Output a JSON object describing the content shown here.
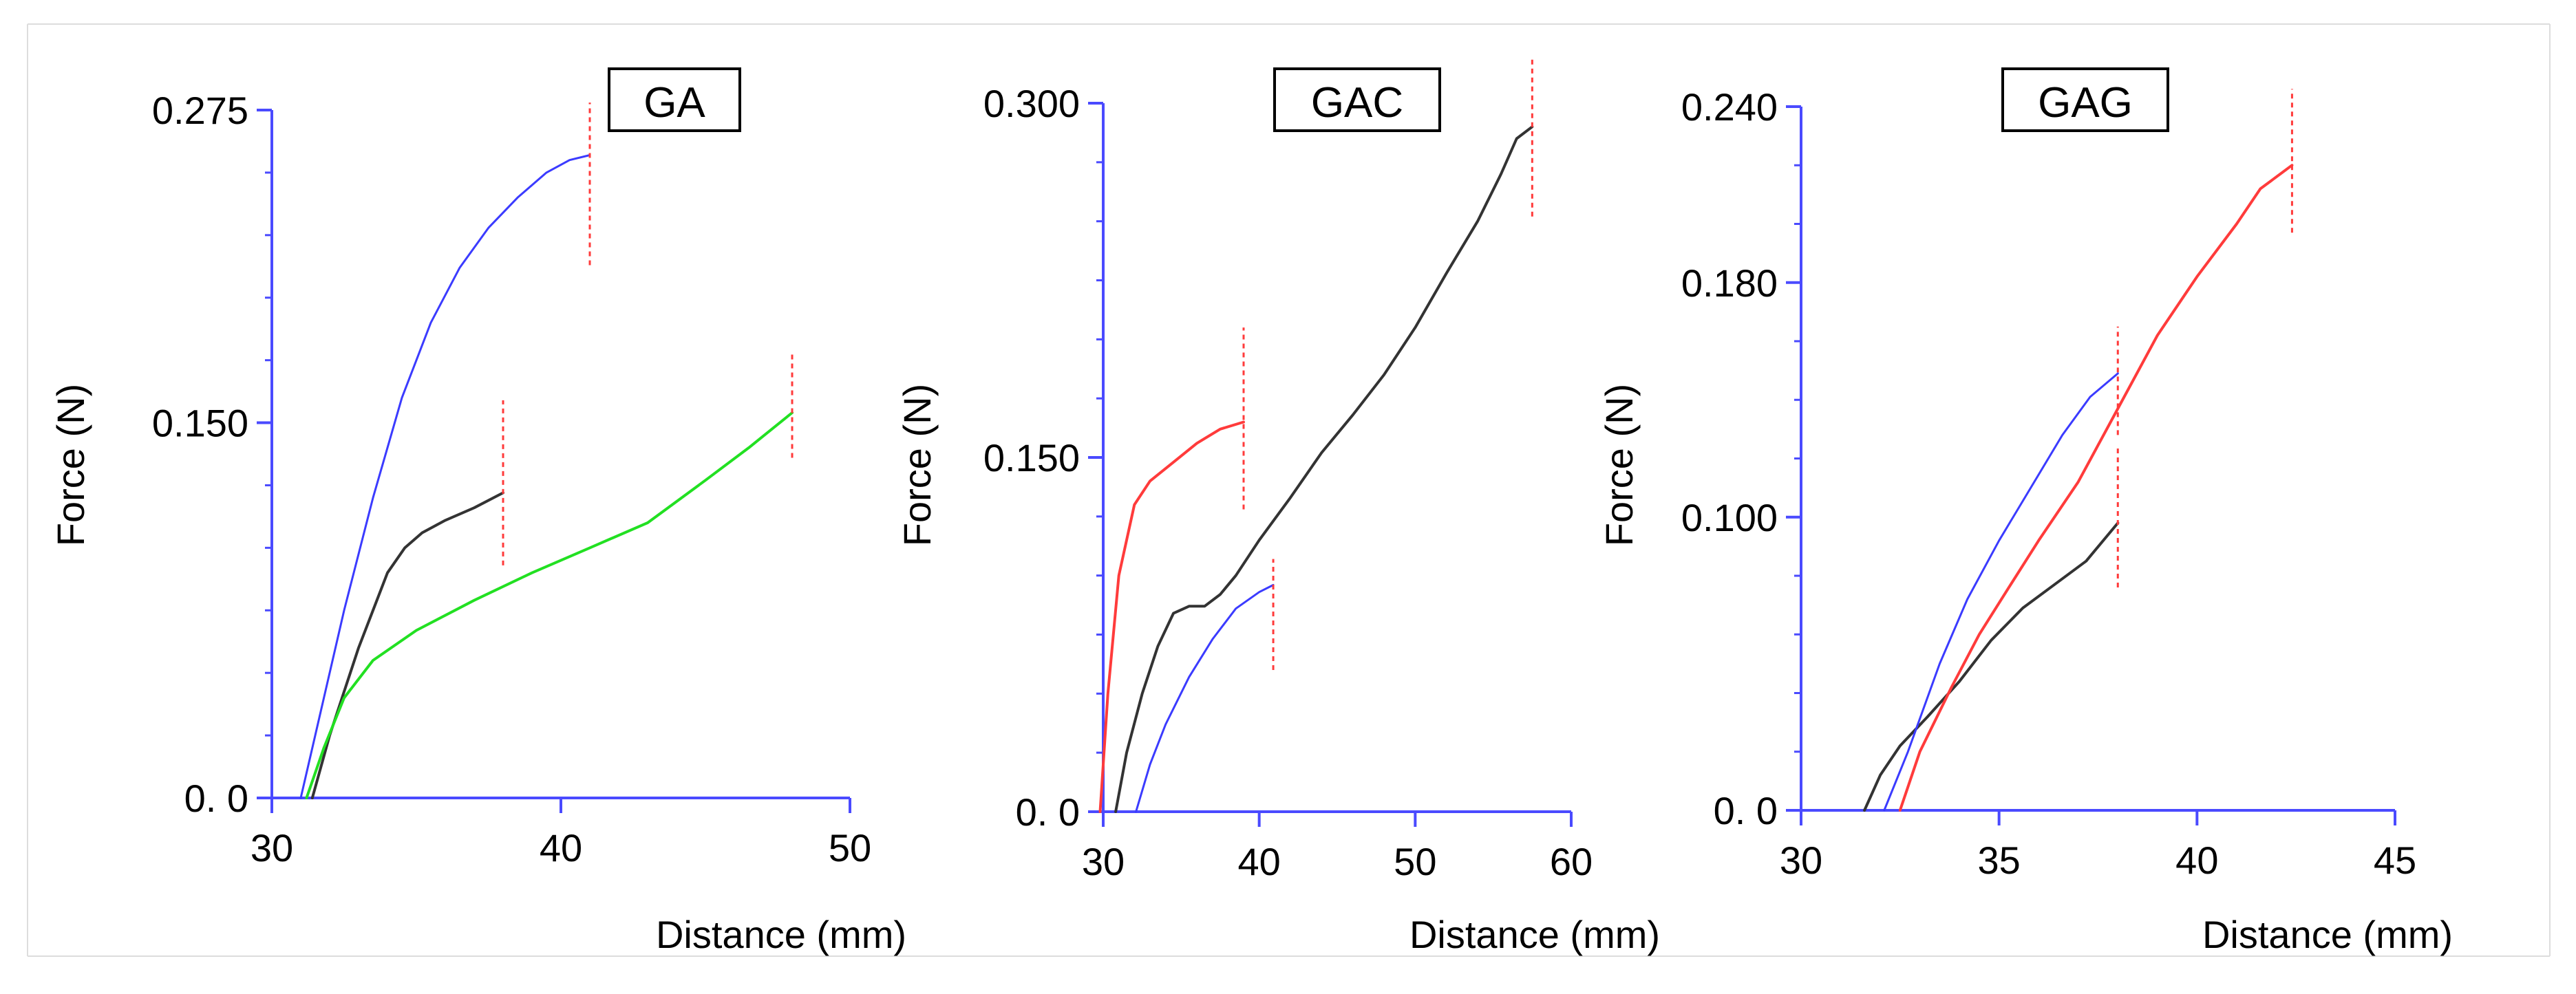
{
  "chart_data": [
    {
      "type": "line",
      "title": "GA",
      "xlabel": "Distance (mm)",
      "ylabel": "Force (N)",
      "xlim": [
        30,
        50
      ],
      "ylim": [
        0,
        0.275
      ],
      "xticks": [
        {
          "v": 30,
          "label": "30"
        },
        {
          "v": 40,
          "label": "40"
        },
        {
          "v": 50,
          "label": "50"
        }
      ],
      "yticks": [
        {
          "v": 0,
          "label": "0. 0"
        },
        {
          "v": 0.15,
          "label": "0.150"
        },
        {
          "v": 0.275,
          "label": "0.275"
        }
      ],
      "yminor": [
        0.025,
        0.05,
        0.075,
        0.1,
        0.125,
        0.175,
        0.2,
        0.225,
        0.25
      ],
      "series": [
        {
          "name": "blue",
          "color": "#3b3bff",
          "width": 3,
          "x": [
            31.0,
            31.5,
            32.5,
            33.5,
            34.5,
            35.5,
            36.5,
            37.5,
            38.5,
            39.5,
            40.3,
            41.0
          ],
          "y": [
            0.0,
            0.025,
            0.075,
            0.12,
            0.16,
            0.19,
            0.212,
            0.228,
            0.24,
            0.25,
            0.255,
            0.257
          ]
        },
        {
          "name": "black",
          "color": "#333333",
          "width": 4,
          "x": [
            31.4,
            32.0,
            33.0,
            34.0,
            34.6,
            35.2,
            36.0,
            37.0,
            38.0
          ],
          "y": [
            0.0,
            0.025,
            0.06,
            0.09,
            0.1,
            0.106,
            0.111,
            0.116,
            0.122
          ]
        },
        {
          "name": "green",
          "color": "#22e022",
          "width": 4,
          "x": [
            31.2,
            31.8,
            32.5,
            33.5,
            35.0,
            37.0,
            39.0,
            41.0,
            43.0,
            45.0,
            46.5,
            48.0
          ],
          "y": [
            0.0,
            0.02,
            0.04,
            0.055,
            0.067,
            0.079,
            0.09,
            0.1,
            0.11,
            0.127,
            0.14,
            0.154
          ]
        }
      ],
      "ends": [
        {
          "x": 41.0,
          "y0": 0.213,
          "y1": 0.278
        },
        {
          "x": 38.0,
          "y0": 0.093,
          "y1": 0.159
        },
        {
          "x": 48.0,
          "y0": 0.136,
          "y1": 0.178
        }
      ]
    },
    {
      "type": "line",
      "title": "GAC",
      "xlabel": "Distance (mm)",
      "ylabel": "Force (N)",
      "xlim": [
        30,
        60
      ],
      "ylim": [
        0,
        0.3
      ],
      "xticks": [
        {
          "v": 30,
          "label": "30"
        },
        {
          "v": 40,
          "label": "40"
        },
        {
          "v": 50,
          "label": "50"
        },
        {
          "v": 60,
          "label": "60"
        }
      ],
      "yticks": [
        {
          "v": 0,
          "label": "0. 0"
        },
        {
          "v": 0.15,
          "label": "0.150"
        },
        {
          "v": 0.3,
          "label": "0.300"
        }
      ],
      "yminor": [
        0.025,
        0.05,
        0.075,
        0.1,
        0.125,
        0.175,
        0.2,
        0.225,
        0.25,
        0.275
      ],
      "series": [
        {
          "name": "red",
          "color": "#ff3b3b",
          "width": 4,
          "x": [
            29.8,
            30.3,
            31.0,
            32.0,
            33.0,
            34.5,
            36.0,
            37.5,
            39.0
          ],
          "y": [
            0.0,
            0.05,
            0.1,
            0.13,
            0.14,
            0.148,
            0.156,
            0.162,
            0.165
          ]
        },
        {
          "name": "black",
          "color": "#333333",
          "width": 4,
          "x": [
            30.8,
            31.5,
            32.5,
            33.5,
            34.5,
            35.5,
            36.5,
            37.5,
            38.5,
            40.0,
            42.0,
            44.0,
            46.0,
            48.0,
            50.0,
            52.0,
            54.0,
            55.5,
            56.5,
            57.5
          ],
          "y": [
            0.0,
            0.025,
            0.05,
            0.07,
            0.084,
            0.087,
            0.087,
            0.092,
            0.1,
            0.115,
            0.133,
            0.152,
            0.168,
            0.185,
            0.205,
            0.228,
            0.25,
            0.27,
            0.285,
            0.29
          ]
        },
        {
          "name": "blue",
          "color": "#3b3bff",
          "width": 3,
          "x": [
            32.1,
            33.0,
            34.0,
            35.5,
            37.0,
            38.5,
            40.0,
            40.9
          ],
          "y": [
            0.0,
            0.02,
            0.037,
            0.057,
            0.073,
            0.086,
            0.093,
            0.096
          ]
        }
      ],
      "ends": [
        {
          "x": 39.0,
          "y0": 0.128,
          "y1": 0.205
        },
        {
          "x": 57.5,
          "y0": 0.252,
          "y1": 0.32
        },
        {
          "x": 40.9,
          "y0": 0.06,
          "y1": 0.107
        }
      ]
    },
    {
      "type": "line",
      "title": "GAG",
      "xlabel": "Distance (mm)",
      "ylabel": "Force (N)",
      "xlim": [
        30,
        45
      ],
      "ylim": [
        0,
        0.24
      ],
      "xticks": [
        {
          "v": 30,
          "label": "30"
        },
        {
          "v": 35,
          "label": "35"
        },
        {
          "v": 40,
          "label": "40"
        },
        {
          "v": 45,
          "label": "45"
        }
      ],
      "yticks": [
        {
          "v": 0,
          "label": "0. 0"
        },
        {
          "v": 0.1,
          "label": "0.100"
        },
        {
          "v": 0.18,
          "label": "0.180"
        },
        {
          "v": 0.24,
          "label": "0.240"
        }
      ],
      "yminor": [
        0.02,
        0.04,
        0.06,
        0.08,
        0.12,
        0.14,
        0.16,
        0.2,
        0.22
      ],
      "series": [
        {
          "name": "black",
          "color": "#333333",
          "width": 4,
          "x": [
            31.6,
            32.0,
            32.5,
            33.2,
            34.0,
            34.8,
            35.6,
            36.4,
            37.2,
            38.0
          ],
          "y": [
            0.0,
            0.012,
            0.022,
            0.032,
            0.044,
            0.058,
            0.069,
            0.077,
            0.085,
            0.098
          ]
        },
        {
          "name": "blue",
          "color": "#3b3bff",
          "width": 3,
          "x": [
            32.1,
            32.7,
            33.5,
            34.2,
            35.0,
            35.8,
            36.6,
            37.3,
            38.0
          ],
          "y": [
            0.0,
            0.02,
            0.05,
            0.072,
            0.092,
            0.11,
            0.128,
            0.141,
            0.149
          ]
        },
        {
          "name": "red",
          "color": "#ff3b3b",
          "width": 4,
          "x": [
            32.5,
            33.0,
            33.8,
            34.5,
            35.2,
            36.0,
            37.0,
            38.0,
            39.0,
            40.0,
            41.0,
            41.6,
            42.4
          ],
          "y": [
            0.0,
            0.02,
            0.042,
            0.06,
            0.075,
            0.092,
            0.112,
            0.137,
            0.162,
            0.182,
            0.2,
            0.212,
            0.22
          ]
        }
      ],
      "ends": [
        {
          "x": 42.4,
          "y0": 0.197,
          "y1": 0.246
        },
        {
          "x": 38.0,
          "y0": 0.128,
          "y1": 0.165
        },
        {
          "x": 38.0,
          "y0": 0.076,
          "y1": 0.124
        }
      ]
    }
  ]
}
